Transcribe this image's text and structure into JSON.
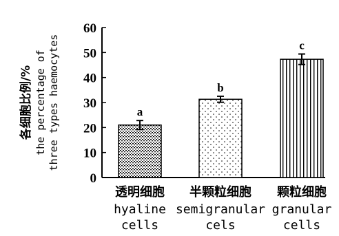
{
  "chart_data": {
    "type": "bar",
    "ylabel_lines": [
      "各细胞比例/%",
      "the percentage of",
      "three types haemocytes"
    ],
    "ylim": [
      0,
      60
    ],
    "yticks": [
      "0",
      "10",
      "20",
      "30",
      "40",
      "50",
      "60"
    ],
    "categories": [
      {
        "zh": "透明细胞",
        "en1": "hyaline",
        "en2": "cells"
      },
      {
        "zh": "半颗粒细胞",
        "en1": "semigranular",
        "en2": "cels"
      },
      {
        "zh": "颗粒细胞",
        "en1": "granular",
        "en2": "cells"
      }
    ],
    "values": [
      21.0,
      31.3,
      47.3
    ],
    "errors": [
      1.8,
      1.2,
      2.1
    ],
    "significance": [
      "a",
      "b",
      "c"
    ],
    "patterns": [
      "dense-dots",
      "sparse-dots",
      "vertical-lines"
    ],
    "grid": false,
    "legend": "none"
  }
}
